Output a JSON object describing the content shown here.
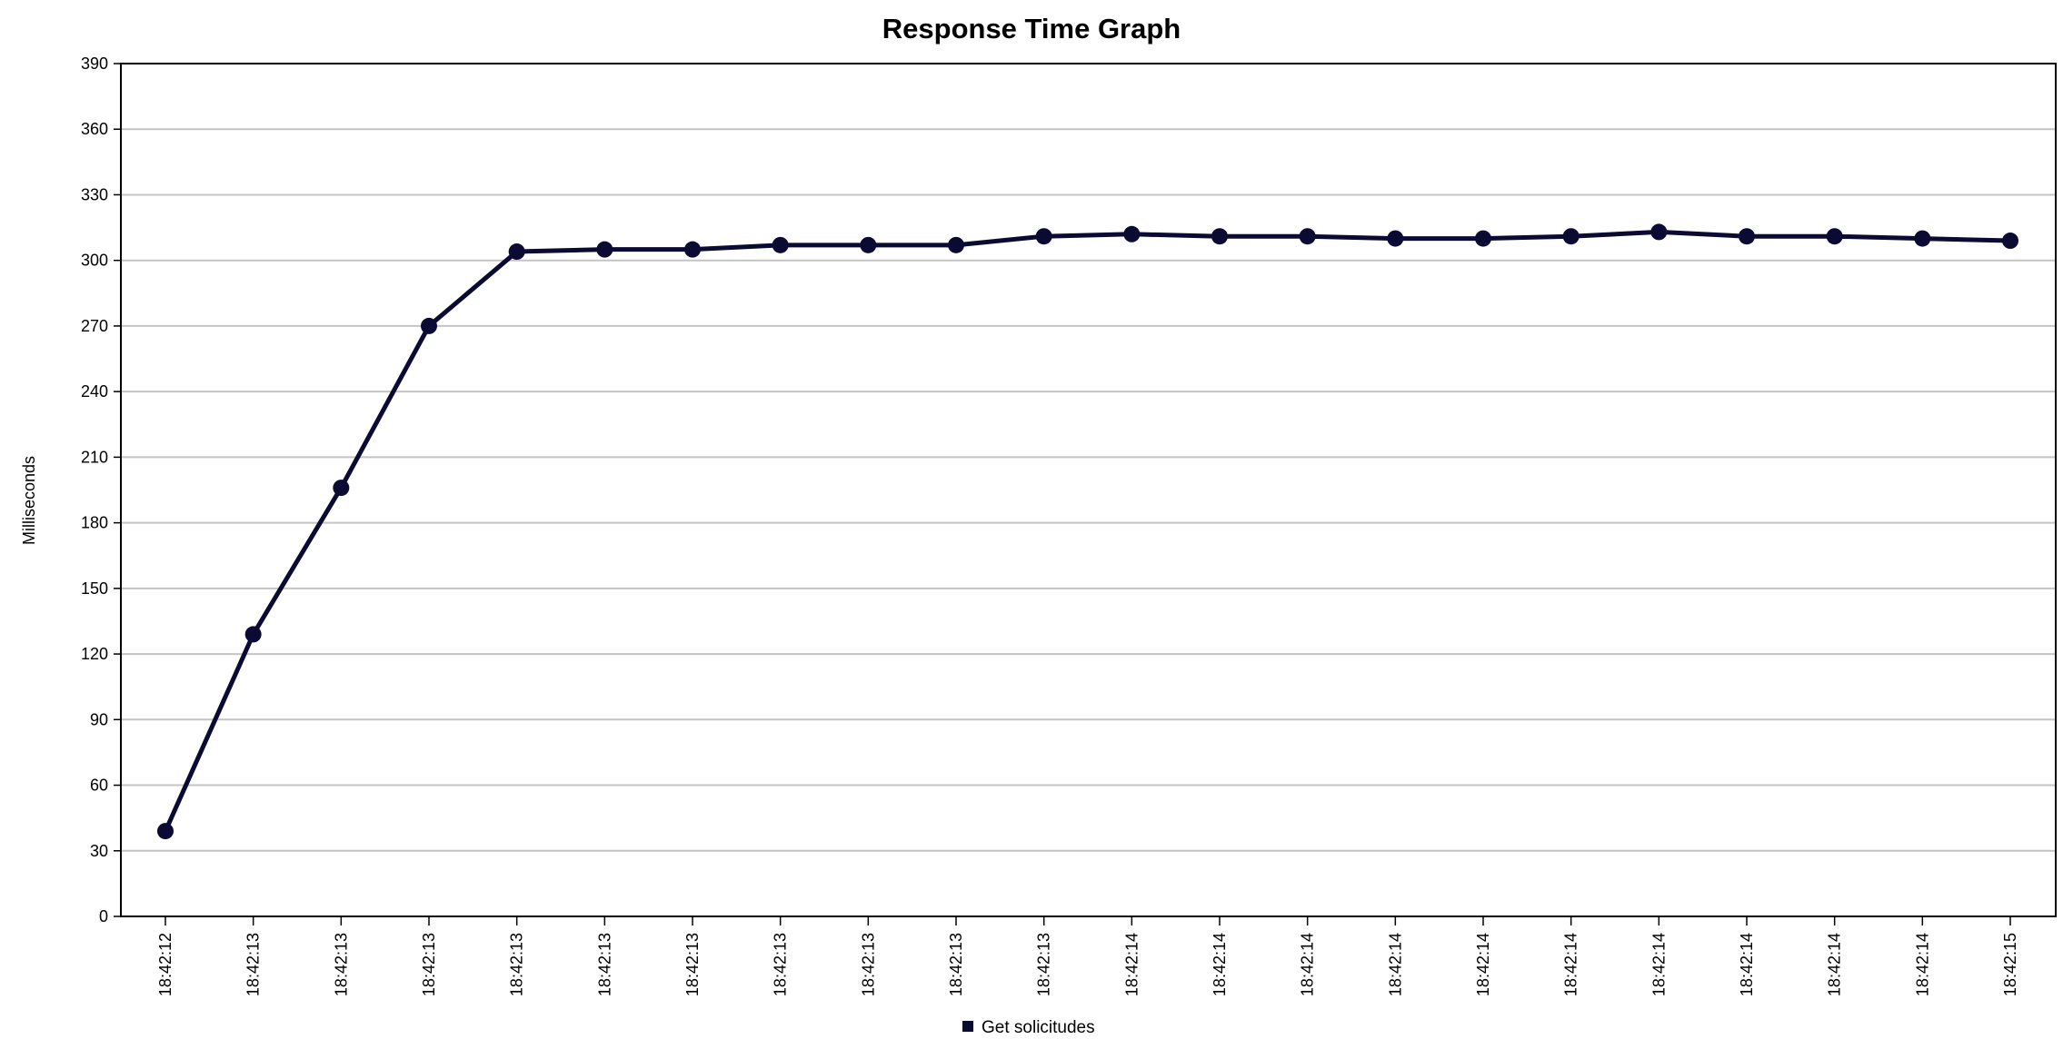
{
  "chart_data": {
    "type": "line",
    "title": "Response Time Graph",
    "xlabel": "",
    "ylabel": "Milliseconds",
    "ylim": [
      0,
      390
    ],
    "yticks": [
      0,
      30,
      60,
      90,
      120,
      150,
      180,
      210,
      240,
      270,
      300,
      330,
      360,
      390
    ],
    "grid": true,
    "legend_position": "bottom-center",
    "categories": [
      "18:42:12",
      "18:42:13",
      "18:42:13",
      "18:42:13",
      "18:42:13",
      "18:42:13",
      "18:42:13",
      "18:42:13",
      "18:42:13",
      "18:42:13",
      "18:42:13",
      "18:42:14",
      "18:42:14",
      "18:42:14",
      "18:42:14",
      "18:42:14",
      "18:42:14",
      "18:42:14",
      "18:42:14",
      "18:42:14",
      "18:42:14",
      "18:42:15"
    ],
    "series": [
      {
        "name": "Get solicitudes",
        "color": "#0b0a33",
        "values": [
          39,
          129,
          196,
          270,
          304,
          305,
          305,
          307,
          307,
          307,
          311,
          312,
          311,
          311,
          310,
          310,
          311,
          313,
          311,
          311,
          310,
          309
        ]
      }
    ]
  }
}
